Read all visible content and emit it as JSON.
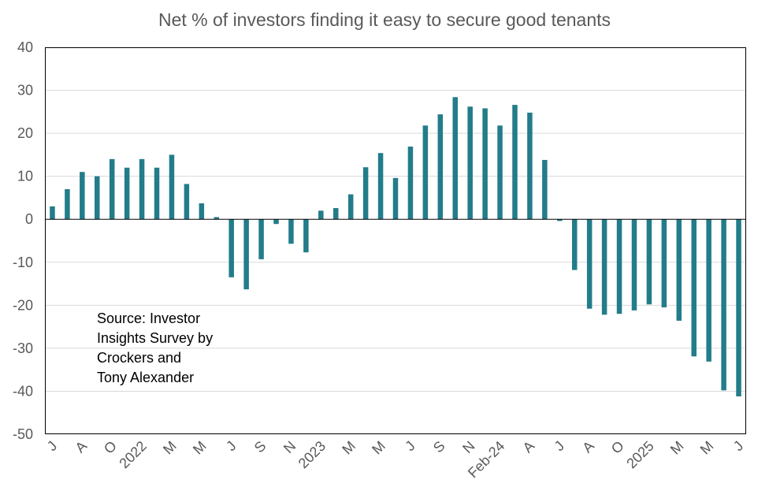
{
  "chart_data": {
    "type": "bar",
    "title": "Net % of investors finding it easy to secure good tenants",
    "xlabel": "",
    "ylabel": "",
    "ylim": [
      -50,
      40
    ],
    "yticks": [
      -50,
      -40,
      -30,
      -20,
      -10,
      0,
      10,
      20,
      30,
      40
    ],
    "grid": true,
    "legend": "none",
    "bar_color": "#237C8A",
    "values": [
      3,
      7,
      11,
      10,
      14,
      12,
      14,
      12,
      15,
      8.2,
      3.7,
      0.5,
      -13.5,
      -16.3,
      -9.3,
      -1.1,
      -5.7,
      -7.7,
      2,
      2.6,
      5.8,
      12.1,
      15.4,
      9.6,
      16.9,
      21.8,
      24.4,
      28.4,
      26.2,
      25.8,
      21.8,
      26.6,
      24.8,
      13.8,
      -0.4,
      -11.8,
      -20.8,
      -22.2,
      -22,
      -21.2,
      -19.8,
      -20.5,
      -23.6,
      -31.9,
      -33.1,
      -39.8,
      -41.2
    ],
    "tick_labels": [
      {
        "index": 0,
        "text": "J"
      },
      {
        "index": 2,
        "text": "A"
      },
      {
        "index": 4,
        "text": "O"
      },
      {
        "index": 6,
        "text": "2022"
      },
      {
        "index": 8,
        "text": "M"
      },
      {
        "index": 10,
        "text": "M"
      },
      {
        "index": 12,
        "text": "J"
      },
      {
        "index": 14,
        "text": "S"
      },
      {
        "index": 16,
        "text": "N"
      },
      {
        "index": 18,
        "text": "2023"
      },
      {
        "index": 20,
        "text": "M"
      },
      {
        "index": 22,
        "text": "M"
      },
      {
        "index": 24,
        "text": "J"
      },
      {
        "index": 26,
        "text": "S"
      },
      {
        "index": 28,
        "text": "N"
      },
      {
        "index": 30,
        "text": "Feb-24"
      },
      {
        "index": 32,
        "text": "A"
      },
      {
        "index": 34,
        "text": "J"
      },
      {
        "index": 36,
        "text": "A"
      },
      {
        "index": 38,
        "text": "O"
      },
      {
        "index": 40,
        "text": "2025"
      },
      {
        "index": 42,
        "text": "M"
      },
      {
        "index": 44,
        "text": "M"
      },
      {
        "index": 46,
        "text": "J"
      }
    ],
    "annotation": [
      "Source: Investor",
      "Insights Survey by",
      "Crockers and",
      "Tony Alexander"
    ]
  }
}
